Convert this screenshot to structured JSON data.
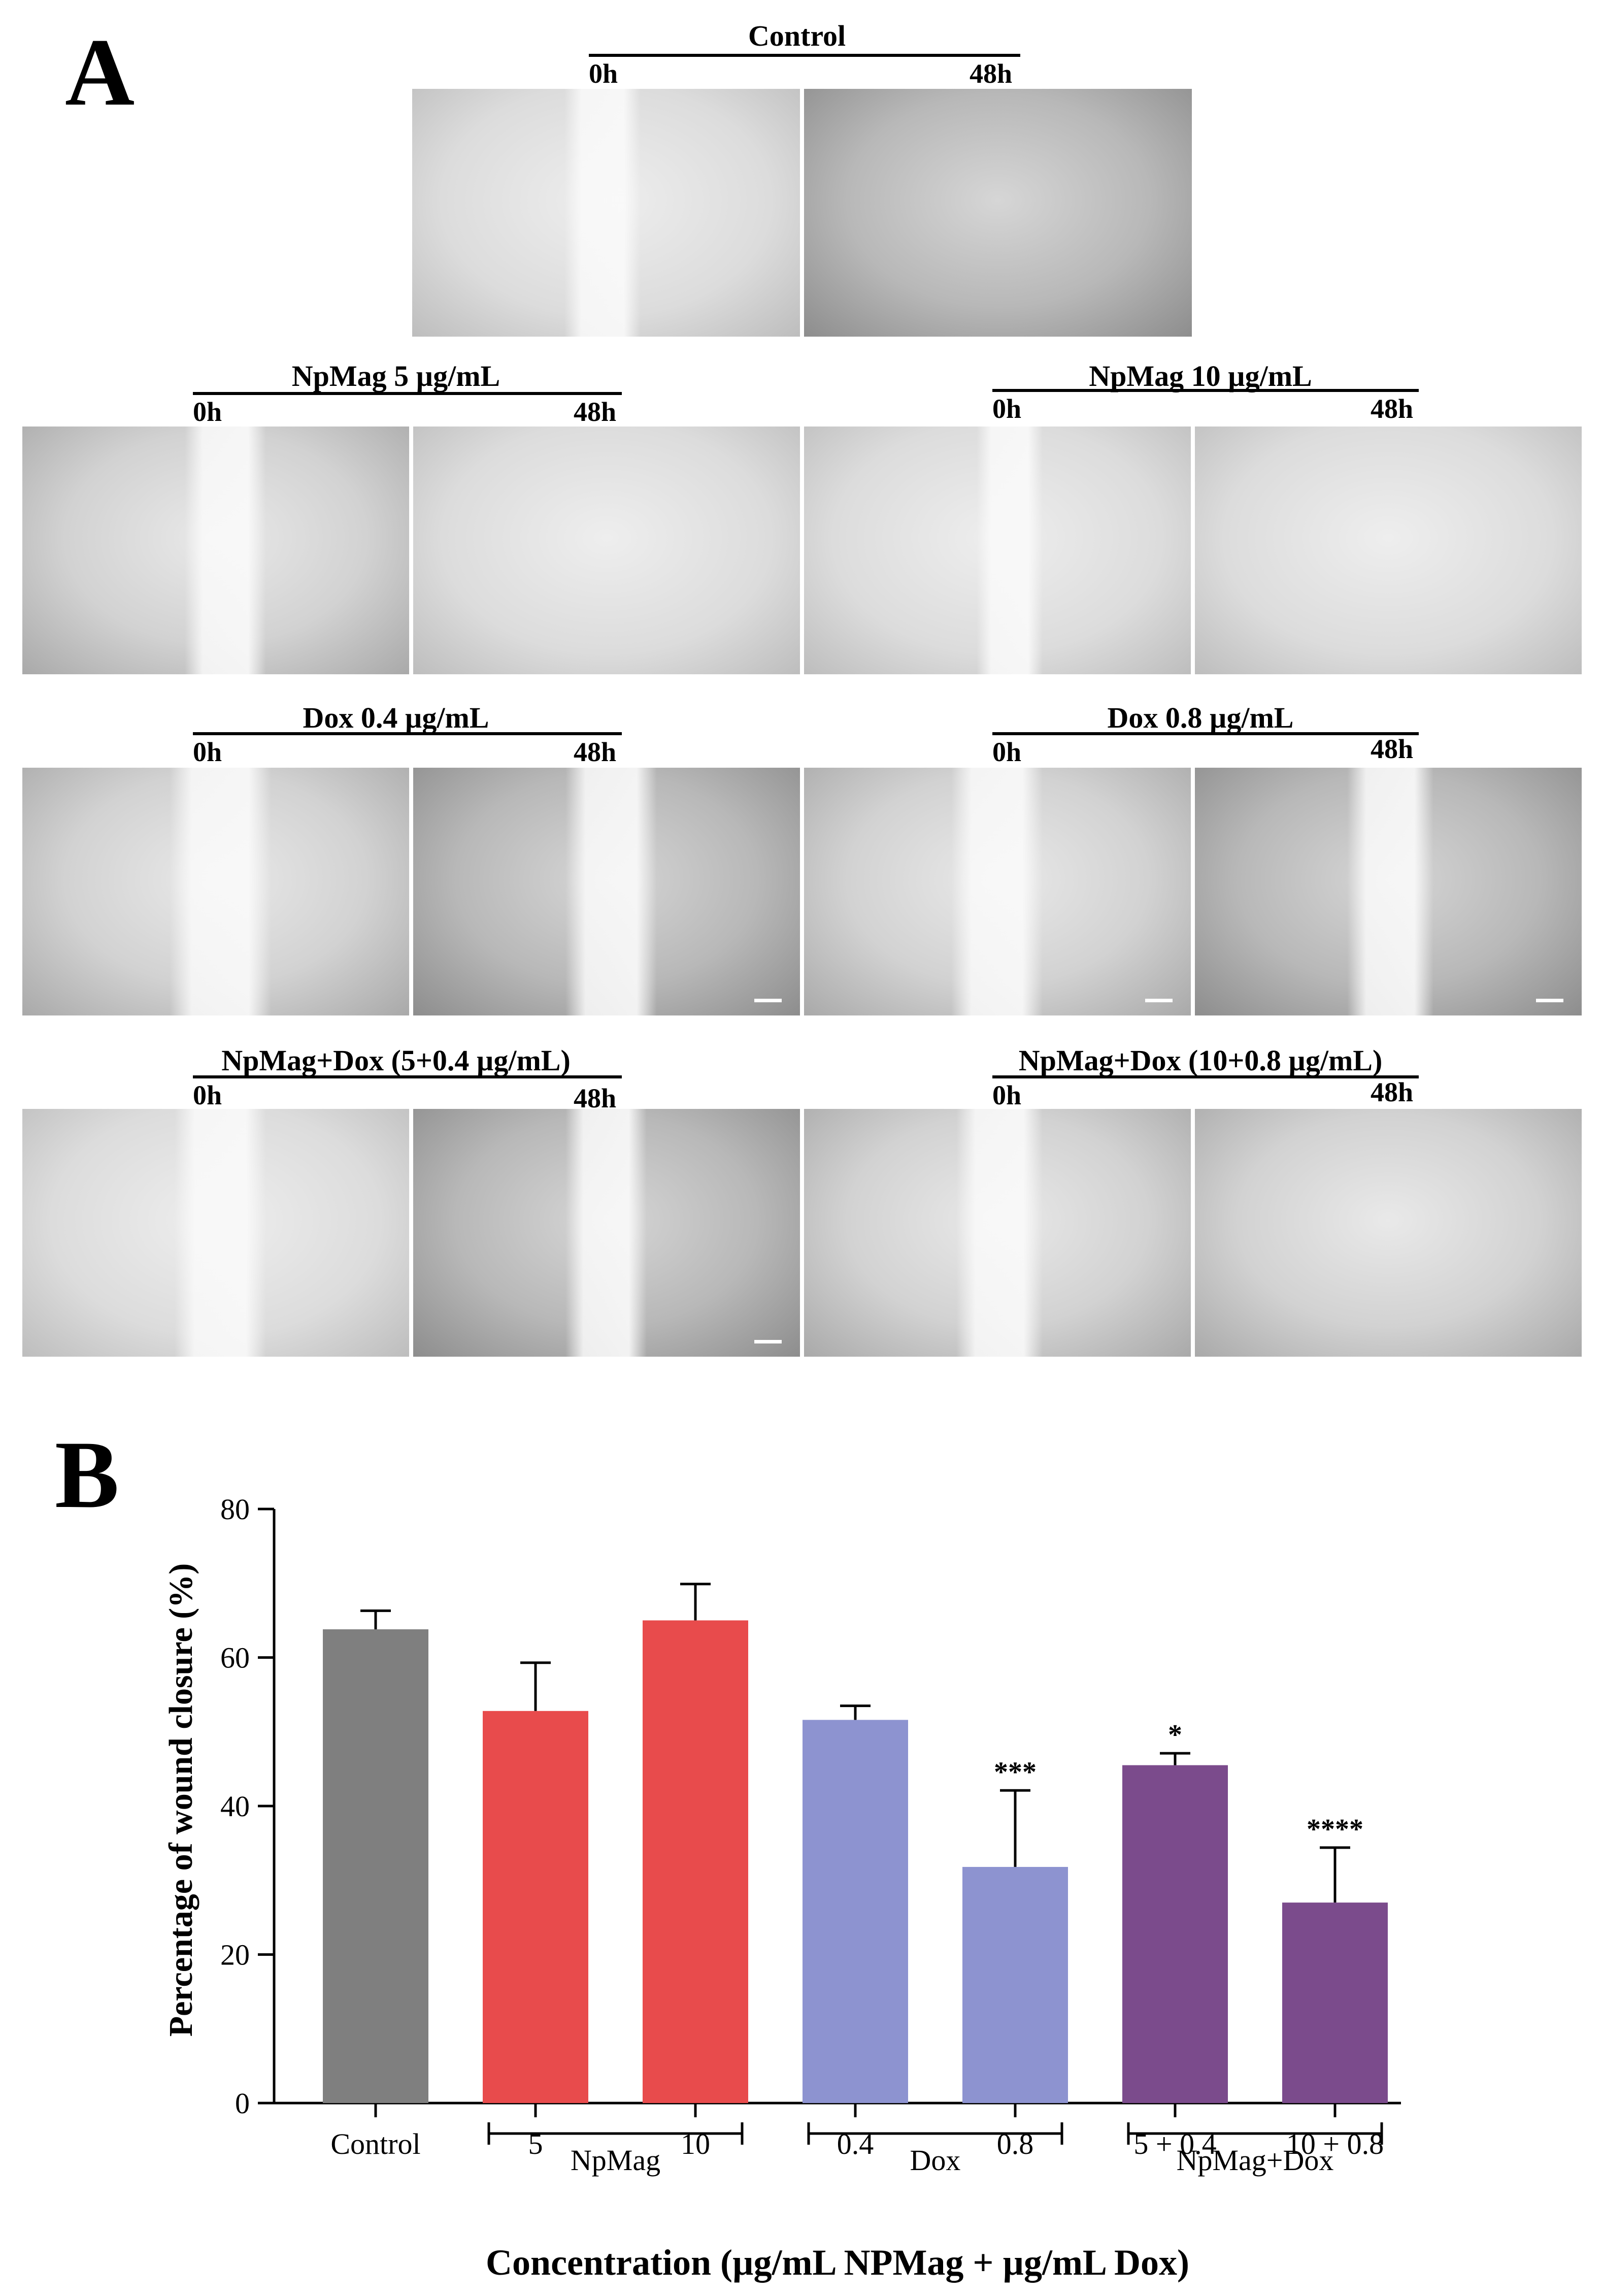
{
  "panelA": {
    "letter": "A",
    "groups": [
      {
        "name": "control",
        "label": "Control",
        "t0": "0h",
        "t1": "48h"
      },
      {
        "name": "npmag5",
        "label": "NpMag 5 µg/mL",
        "t0": "0h",
        "t1": "48h"
      },
      {
        "name": "npmag10",
        "label": "NpMag 10 µg/mL",
        "t0": "0h",
        "t1": "48h"
      },
      {
        "name": "dox04",
        "label": "Dox 0.4 µg/mL",
        "t0": "0h",
        "t1": "48h"
      },
      {
        "name": "dox08",
        "label": "Dox 0.8 µg/mL",
        "t0": "0h",
        "t1": "48h"
      },
      {
        "name": "combo1",
        "label": "NpMag+Dox (5+0.4 µg/mL)",
        "t0": "0h",
        "t1": "48h"
      },
      {
        "name": "combo2",
        "label": "NpMag+Dox (10+0.8 µg/mL)",
        "t0": "0h",
        "t1": "48h"
      }
    ]
  },
  "chart_data": {
    "panel_letter": "B",
    "type": "bar",
    "categories": [
      "Control",
      "5",
      "10",
      "0.4",
      "0.8",
      "5 + 0.4",
      "10 + 0.8"
    ],
    "values": [
      63.8,
      52.8,
      65.0,
      51.6,
      31.8,
      45.5,
      27.0
    ],
    "errors": [
      2.5,
      6.5,
      4.9,
      1.9,
      10.3,
      1.6,
      7.4
    ],
    "significance": [
      "",
      "",
      "",
      "",
      "***",
      "*",
      "****"
    ],
    "colors": [
      "#7f7f7f",
      "#e84b4c",
      "#e84b4c",
      "#8d93d0",
      "#8d93d0",
      "#7b4b8c",
      "#7b4b8c"
    ],
    "bracket_groups": [
      {
        "label": "NpMag",
        "from": 1,
        "to": 2
      },
      {
        "label": "Dox",
        "from": 3,
        "to": 4
      },
      {
        "label": "NpMag+Dox",
        "from": 5,
        "to": 6
      }
    ],
    "xlabel": "Concentration (µg/mL NPMag + µg/mL Dox)",
    "ylabel": "Percentage of wound closure (%)",
    "ylim": [
      0,
      80
    ],
    "yticks": [
      0,
      20,
      40,
      60,
      80
    ],
    "grid": false
  }
}
